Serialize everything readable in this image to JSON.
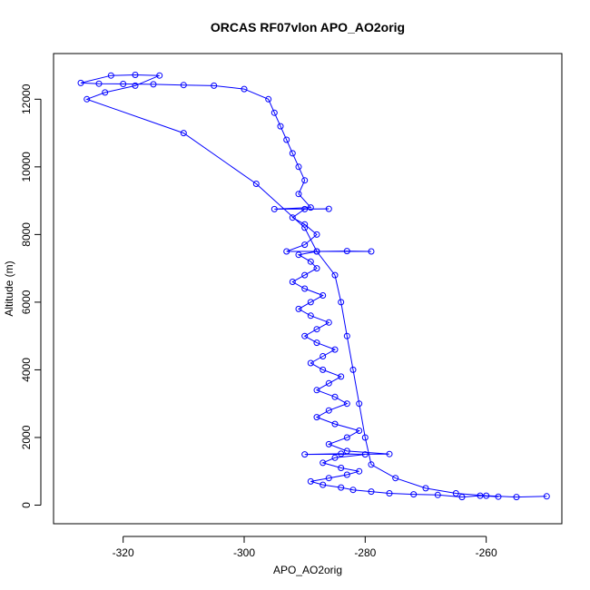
{
  "chart_data": {
    "type": "scatter",
    "title": "ORCAS RF07vlon APO_AO2orig",
    "xlabel": "APO_AO2orig",
    "ylabel": "Altitude (m)",
    "xlim": [
      -331.5,
      -247.5
    ],
    "ylim": [
      -550,
      13350
    ],
    "x_ticks": [
      -320,
      -300,
      -280,
      -260
    ],
    "y_ticks": [
      0,
      2000,
      4000,
      6000,
      8000,
      10000,
      12000
    ],
    "grid": false,
    "legend": "none",
    "marker": "open-circle",
    "connected": true,
    "series": [
      {
        "color": "#0000ff",
        "points": [
          [
            -258,
            250
          ],
          [
            -261,
            280
          ],
          [
            -264,
            240
          ],
          [
            -268,
            300
          ],
          [
            -272,
            320
          ],
          [
            -276,
            350
          ],
          [
            -279,
            400
          ],
          [
            -282,
            450
          ],
          [
            -284,
            520
          ],
          [
            -287,
            600
          ],
          [
            -289,
            700
          ],
          [
            -286,
            800
          ],
          [
            -283,
            900
          ],
          [
            -281,
            1000
          ],
          [
            -284,
            1100
          ],
          [
            -287,
            1250
          ],
          [
            -285,
            1400
          ],
          [
            -280,
            1500
          ],
          [
            -284,
            1520
          ],
          [
            -290,
            1500
          ],
          [
            -276,
            1510
          ],
          [
            -283,
            1600
          ],
          [
            -286,
            1800
          ],
          [
            -283,
            2000
          ],
          [
            -281,
            2200
          ],
          [
            -285,
            2400
          ],
          [
            -288,
            2600
          ],
          [
            -286,
            2800
          ],
          [
            -283,
            3000
          ],
          [
            -285,
            3200
          ],
          [
            -288,
            3400
          ],
          [
            -286,
            3600
          ],
          [
            -284,
            3800
          ],
          [
            -287,
            4000
          ],
          [
            -289,
            4200
          ],
          [
            -287,
            4400
          ],
          [
            -285,
            4600
          ],
          [
            -288,
            4800
          ],
          [
            -290,
            5000
          ],
          [
            -288,
            5200
          ],
          [
            -286,
            5400
          ],
          [
            -289,
            5600
          ],
          [
            -291,
            5800
          ],
          [
            -289,
            6000
          ],
          [
            -287,
            6200
          ],
          [
            -290,
            6400
          ],
          [
            -292,
            6600
          ],
          [
            -290,
            6800
          ],
          [
            -288,
            7000
          ],
          [
            -289,
            7200
          ],
          [
            -291,
            7400
          ],
          [
            -288,
            7500
          ],
          [
            -283,
            7510
          ],
          [
            -279,
            7500
          ],
          [
            -293,
            7500
          ],
          [
            -290,
            7700
          ],
          [
            -288,
            8000
          ],
          [
            -290,
            8300
          ],
          [
            -292,
            8500
          ],
          [
            -290,
            8750
          ],
          [
            -286,
            8760
          ],
          [
            -295,
            8750
          ],
          [
            -289,
            8800
          ],
          [
            -291,
            9200
          ],
          [
            -290,
            9600
          ],
          [
            -291,
            10000
          ],
          [
            -292,
            10400
          ],
          [
            -293,
            10800
          ],
          [
            -294,
            11200
          ],
          [
            -295,
            11600
          ],
          [
            -296,
            12000
          ],
          [
            -300,
            12300
          ],
          [
            -305,
            12400
          ],
          [
            -310,
            12420
          ],
          [
            -315,
            12440
          ],
          [
            -320,
            12450
          ],
          [
            -324,
            12460
          ],
          [
            -327,
            12480
          ],
          [
            -322,
            12700
          ],
          [
            -318,
            12720
          ],
          [
            -314,
            12700
          ],
          [
            -318,
            12400
          ],
          [
            -323,
            12200
          ],
          [
            -326,
            12000
          ],
          [
            -310,
            11000
          ],
          [
            -298,
            9500
          ],
          [
            -290,
            8200
          ],
          [
            -288,
            7500
          ],
          [
            -285,
            6800
          ],
          [
            -284,
            6000
          ],
          [
            -283,
            5000
          ],
          [
            -282,
            4000
          ],
          [
            -281,
            3000
          ],
          [
            -280,
            2000
          ],
          [
            -279,
            1200
          ],
          [
            -275,
            800
          ],
          [
            -270,
            500
          ],
          [
            -265,
            350
          ],
          [
            -260,
            280
          ],
          [
            -255,
            240
          ],
          [
            -250,
            260
          ]
        ]
      }
    ]
  }
}
